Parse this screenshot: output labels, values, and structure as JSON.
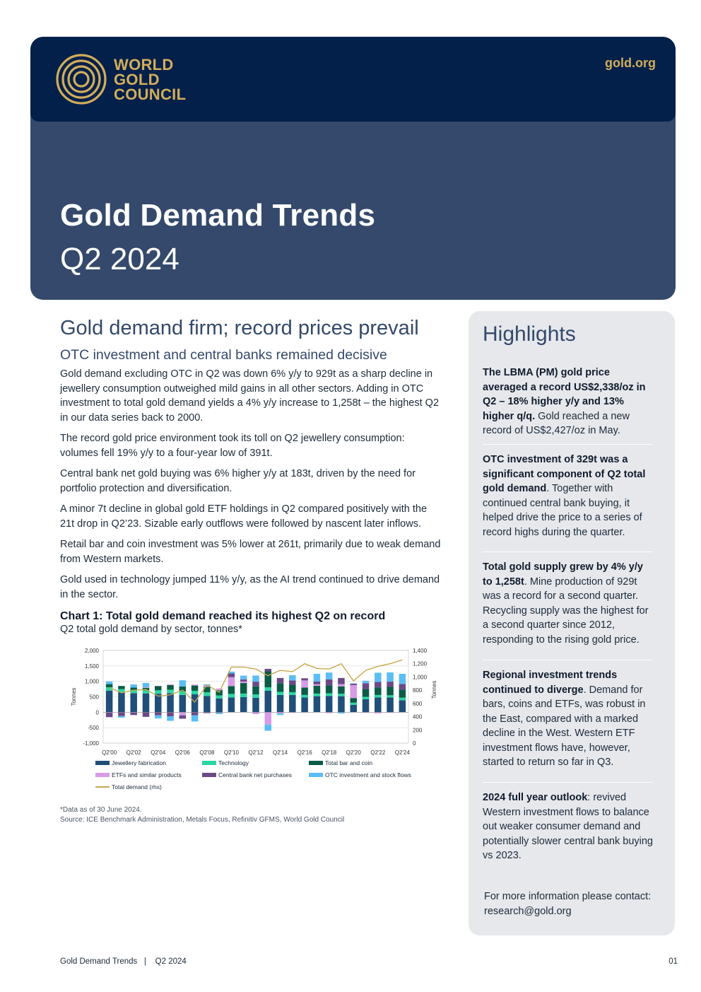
{
  "header": {
    "logo_lines": [
      "WORLD",
      "GOLD",
      "COUNCIL"
    ],
    "site": "gold.org",
    "title": "Gold Demand Trends",
    "subtitle": "Q2 2024"
  },
  "main": {
    "heading": "Gold demand firm; record prices prevail",
    "subheading": "OTC investment and central banks remained decisive",
    "paragraphs": [
      "Gold demand excluding OTC in Q2 was down 6% y/y to 929t as a sharp decline in jewellery consumption outweighed mild gains in all other sectors. Adding in OTC investment to total gold demand yields a 4% y/y increase to 1,258t – the highest Q2 in our data series back to 2000.",
      "The record gold price environment took its toll on Q2 jewellery consumption: volumes fell 19% y/y to a four-year low of 391t.",
      "Central bank net gold buying was 6% higher y/y at 183t, driven by the need for portfolio protection and diversification.",
      "A minor 7t decline in global gold ETF holdings in Q2 compared positively with the 21t drop in Q2’23. Sizable early outflows were followed by nascent later inflows.",
      "Retail bar and coin investment was 5% lower at 261t, primarily due to weak demand from Western markets.",
      "Gold used in technology jumped 11% y/y, as the AI trend continued to drive demand in the sector."
    ],
    "chart_title": "Chart 1: Total gold demand reached its highest Q2 on record",
    "chart_subtitle": "Q2 total gold demand by sector, tonnes*",
    "note": "*Data as of 30 June 2024.",
    "source": "Source: ICE Benchmark Administration, Metals Focus, Refinitiv GFMS, World Gold Council"
  },
  "chart_data": {
    "type": "bar",
    "stacked": true,
    "categories": [
      "Q2'00",
      "Q2'01",
      "Q2'02",
      "Q2'03",
      "Q2'04",
      "Q2'05",
      "Q2'06",
      "Q2'07",
      "Q2'08",
      "Q2'09",
      "Q2'10",
      "Q2'11",
      "Q2'12",
      "Q2'13",
      "Q2'14",
      "Q2'15",
      "Q2'16",
      "Q2'17",
      "Q2'18",
      "Q2'19",
      "Q2'20",
      "Q2'21",
      "Q2'22",
      "Q2'23",
      "Q2'24"
    ],
    "tick_labels": [
      "Q2'00",
      "Q2'02",
      "Q2'04",
      "Q2'06",
      "Q2'08",
      "Q2'10",
      "Q2'12",
      "Q2'14",
      "Q2'16",
      "Q2'18",
      "Q2'20",
      "Q2'22",
      "Q2'24"
    ],
    "ylabel": "Tonnes",
    "y2label": "Tonnes",
    "ylim": [
      -1000,
      2000
    ],
    "yticks": [
      "2,000",
      "1,500",
      "1,000",
      "500",
      "0",
      "-500",
      "-1,000"
    ],
    "y2lim": [
      0,
      1400
    ],
    "y2ticks": [
      "1,400",
      "1,200",
      "1,000",
      "800",
      "600",
      "400",
      "200",
      "0"
    ],
    "series": [
      {
        "name": "Jewellery fabrication",
        "color": "#1f4e79",
        "axis": "left",
        "values": [
          700,
          650,
          620,
          610,
          600,
          620,
          560,
          580,
          530,
          450,
          480,
          490,
          470,
          700,
          560,
          560,
          480,
          520,
          530,
          520,
          240,
          420,
          480,
          480,
          391
        ]
      },
      {
        "name": "Technology",
        "color": "#2ad6a2",
        "axis": "left",
        "values": [
          110,
          100,
          100,
          100,
          110,
          110,
          115,
          115,
          115,
          95,
          115,
          115,
          110,
          105,
          100,
          90,
          80,
          85,
          85,
          80,
          70,
          80,
          80,
          70,
          80
        ]
      },
      {
        "name": "Total bar and coin",
        "color": "#0a5c46",
        "axis": "left",
        "values": [
          100,
          100,
          80,
          80,
          140,
          150,
          160,
          170,
          180,
          170,
          250,
          340,
          260,
          520,
          280,
          240,
          240,
          250,
          250,
          240,
          150,
          250,
          240,
          270,
          261
        ]
      },
      {
        "name": "ETFs and similar products",
        "color": "#d79be8",
        "axis": "left",
        "values": [
          -10,
          -5,
          -10,
          20,
          0,
          20,
          -100,
          30,
          40,
          50,
          290,
          50,
          -60,
          -400,
          -40,
          -20,
          230,
          50,
          -30,
          70,
          420,
          -20,
          -40,
          -20,
          -7
        ]
      },
      {
        "name": "Central bank net purchases",
        "color": "#6a4a86",
        "axis": "left",
        "values": [
          -150,
          -120,
          -80,
          -150,
          -100,
          -130,
          -110,
          -100,
          -30,
          -20,
          120,
          70,
          150,
          80,
          170,
          140,
          70,
          90,
          200,
          200,
          50,
          190,
          180,
          170,
          183
        ]
      },
      {
        "name": "OTC investment and stock flows",
        "color": "#5bbdf5",
        "axis": "left",
        "values": [
          90,
          -50,
          100,
          140,
          -100,
          -150,
          200,
          -200,
          40,
          -40,
          60,
          120,
          200,
          -200,
          -50,
          170,
          -10,
          250,
          220,
          -40,
          0,
          80,
          300,
          300,
          329
        ]
      },
      {
        "name": "Total demand (rhs)",
        "color": "#c9a84e",
        "axis": "right",
        "type": "line",
        "values": [
          840,
          760,
          800,
          810,
          710,
          730,
          800,
          620,
          880,
          770,
          1150,
          1150,
          1120,
          1020,
          1100,
          1080,
          1200,
          1130,
          1120,
          1200,
          940,
          1100,
          1160,
          1200,
          1258
        ]
      }
    ]
  },
  "sidebar": {
    "title": "Highlights",
    "items": [
      {
        "bold": "The LBMA (PM) gold price averaged a record US$2,338/oz in Q2 – 18% higher y/y and 13% higher q/q.",
        "text": " Gold reached a new record of US$2,427/oz in May."
      },
      {
        "bold": "OTC investment of 329t was a significant component of Q2 total gold demand",
        "text": ". Together with continued central bank buying, it helped drive the price to a series of record highs during the quarter."
      },
      {
        "bold": "Total gold supply grew by 4% y/y to 1,258t",
        "text": ". Mine production of 929t was a record for a second quarter. Recycling supply was the highest for a second quarter since 2012, responding to the rising gold price."
      },
      {
        "bold": "Regional investment trends continued to diverge",
        "text": ". Demand for bars, coins and ETFs, was robust in the East, compared with a marked decline in the West. Western ETF investment flows have, however, started to return so far in Q3."
      },
      {
        "bold": "2024 full year outlook",
        "text": ": revived Western investment flows to balance out weaker consumer demand and potentially slower central bank buying vs 2023."
      }
    ],
    "contact": "For more information please contact: research@gold.org"
  },
  "footer": {
    "left": "Gold Demand Trends   |    Q2 2024",
    "page": "01"
  }
}
